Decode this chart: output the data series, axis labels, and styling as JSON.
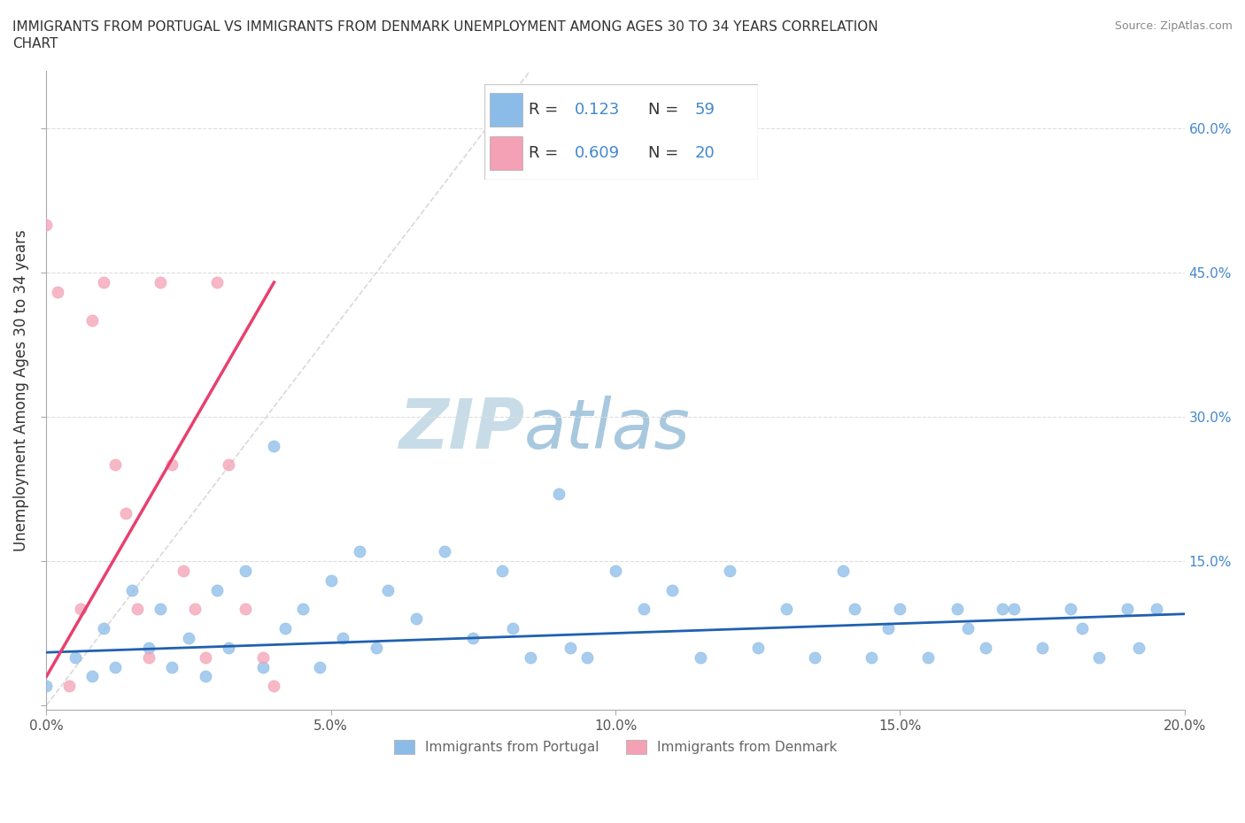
{
  "title": "IMMIGRANTS FROM PORTUGAL VS IMMIGRANTS FROM DENMARK UNEMPLOYMENT AMONG AGES 30 TO 34 YEARS CORRELATION\nCHART",
  "source": "Source: ZipAtlas.com",
  "ylabel": "Unemployment Among Ages 30 to 34 years",
  "xlim": [
    0.0,
    0.2
  ],
  "ylim": [
    -0.005,
    0.66
  ],
  "yticks": [
    0.0,
    0.15,
    0.3,
    0.45,
    0.6
  ],
  "ytick_labels": [
    "",
    "15.0%",
    "30.0%",
    "45.0%",
    "60.0%"
  ],
  "xticks": [
    0.0,
    0.05,
    0.1,
    0.15,
    0.2
  ],
  "xtick_labels": [
    "0.0%",
    "5.0%",
    "10.0%",
    "15.0%",
    "20.0%"
  ],
  "portugal_R": 0.123,
  "portugal_N": 59,
  "denmark_R": 0.609,
  "denmark_N": 20,
  "portugal_color": "#8bbce8",
  "denmark_color": "#f4a0b5",
  "portugal_line_color": "#2060b0",
  "denmark_line_color": "#e84070",
  "ref_line_color": "#d0d0d0",
  "watermark_zip_color": "#c5d8ed",
  "watermark_atlas_color": "#a0c4e0",
  "portugal_x": [
    0.0,
    0.005,
    0.008,
    0.01,
    0.012,
    0.015,
    0.018,
    0.02,
    0.022,
    0.025,
    0.028,
    0.03,
    0.032,
    0.035,
    0.038,
    0.04,
    0.042,
    0.045,
    0.048,
    0.05,
    0.052,
    0.055,
    0.058,
    0.06,
    0.065,
    0.07,
    0.075,
    0.08,
    0.082,
    0.085,
    0.09,
    0.092,
    0.095,
    0.1,
    0.105,
    0.11,
    0.115,
    0.12,
    0.125,
    0.13,
    0.135,
    0.14,
    0.142,
    0.145,
    0.148,
    0.15,
    0.155,
    0.16,
    0.162,
    0.165,
    0.168,
    0.17,
    0.175,
    0.18,
    0.182,
    0.185,
    0.19,
    0.192,
    0.195
  ],
  "portugal_y": [
    0.02,
    0.05,
    0.03,
    0.08,
    0.04,
    0.12,
    0.06,
    0.1,
    0.04,
    0.07,
    0.03,
    0.12,
    0.06,
    0.14,
    0.04,
    0.27,
    0.08,
    0.1,
    0.04,
    0.13,
    0.07,
    0.16,
    0.06,
    0.12,
    0.09,
    0.16,
    0.07,
    0.14,
    0.08,
    0.05,
    0.22,
    0.06,
    0.05,
    0.14,
    0.1,
    0.12,
    0.05,
    0.14,
    0.06,
    0.1,
    0.05,
    0.14,
    0.1,
    0.05,
    0.08,
    0.1,
    0.05,
    0.1,
    0.08,
    0.06,
    0.1,
    0.1,
    0.06,
    0.1,
    0.08,
    0.05,
    0.1,
    0.06,
    0.1
  ],
  "denmark_x": [
    0.0,
    0.002,
    0.004,
    0.006,
    0.008,
    0.01,
    0.012,
    0.014,
    0.016,
    0.018,
    0.02,
    0.022,
    0.024,
    0.026,
    0.028,
    0.03,
    0.032,
    0.035,
    0.038,
    0.04
  ],
  "denmark_y": [
    0.5,
    0.43,
    0.02,
    0.1,
    0.4,
    0.44,
    0.25,
    0.2,
    0.1,
    0.05,
    0.44,
    0.25,
    0.14,
    0.1,
    0.05,
    0.44,
    0.25,
    0.1,
    0.05,
    0.02
  ],
  "denmark_trend_x": [
    0.0,
    0.04
  ],
  "denmark_trend_y": [
    0.03,
    0.44
  ],
  "portugal_trend_x": [
    0.0,
    0.2
  ],
  "portugal_trend_y": [
    0.055,
    0.095
  ],
  "ref_line_x": [
    0.0,
    0.085
  ],
  "ref_line_y": [
    0.0,
    0.66
  ]
}
